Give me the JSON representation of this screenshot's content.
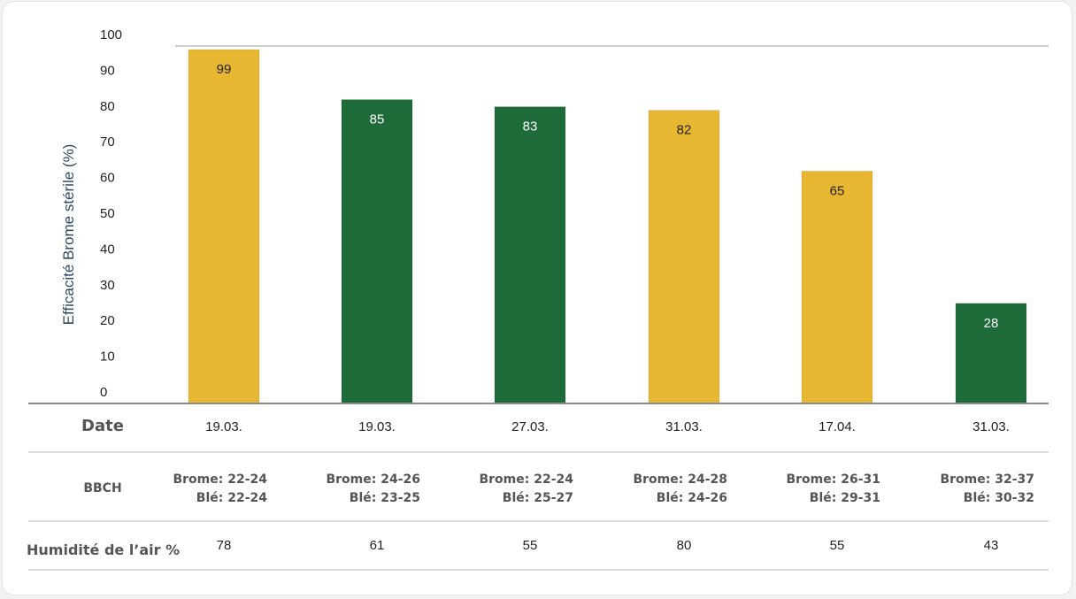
{
  "chart_data": {
    "type": "bar",
    "ylabel": "Efficacité Brome stérile (%)",
    "ylim": [
      0,
      100
    ],
    "yticks": [
      0,
      10,
      20,
      30,
      40,
      50,
      60,
      70,
      80,
      90,
      100
    ],
    "grid": false,
    "values": [
      99,
      85,
      83,
      82,
      65,
      28
    ],
    "bar_colors": [
      "#e8b731",
      "#1e6b3a",
      "#1e6b3a",
      "#e8b731",
      "#e8b731",
      "#1e6b3a"
    ],
    "value_label_colors": [
      "#222222",
      "#ffffff",
      "#ffffff",
      "#222222",
      "#222222",
      "#ffffff"
    ]
  },
  "table": {
    "date_label": "Date",
    "dates": [
      "19.03.",
      "19.03.",
      "27.03.",
      "31.03.",
      "17.04.",
      "31.03."
    ],
    "bbch_label": "BBCH",
    "bbch": [
      {
        "brome": "Brome: 22-24",
        "ble": "Blé: 22-24"
      },
      {
        "brome": "Brome: 24-26",
        "ble": "Blé: 23-25"
      },
      {
        "brome": "Brome: 22-24",
        "ble": "Blé: 25-27"
      },
      {
        "brome": "Brome: 24-28",
        "ble": "Blé: 24-26"
      },
      {
        "brome": "Brome: 26-31",
        "ble": "Blé: 29-31"
      },
      {
        "brome": "Brome: 32-37",
        "ble": "Blé: 30-32"
      }
    ],
    "humidity_label": "Humidité de l’air %",
    "humidity": [
      "78",
      "61",
      "55",
      "80",
      "55",
      "43"
    ]
  }
}
